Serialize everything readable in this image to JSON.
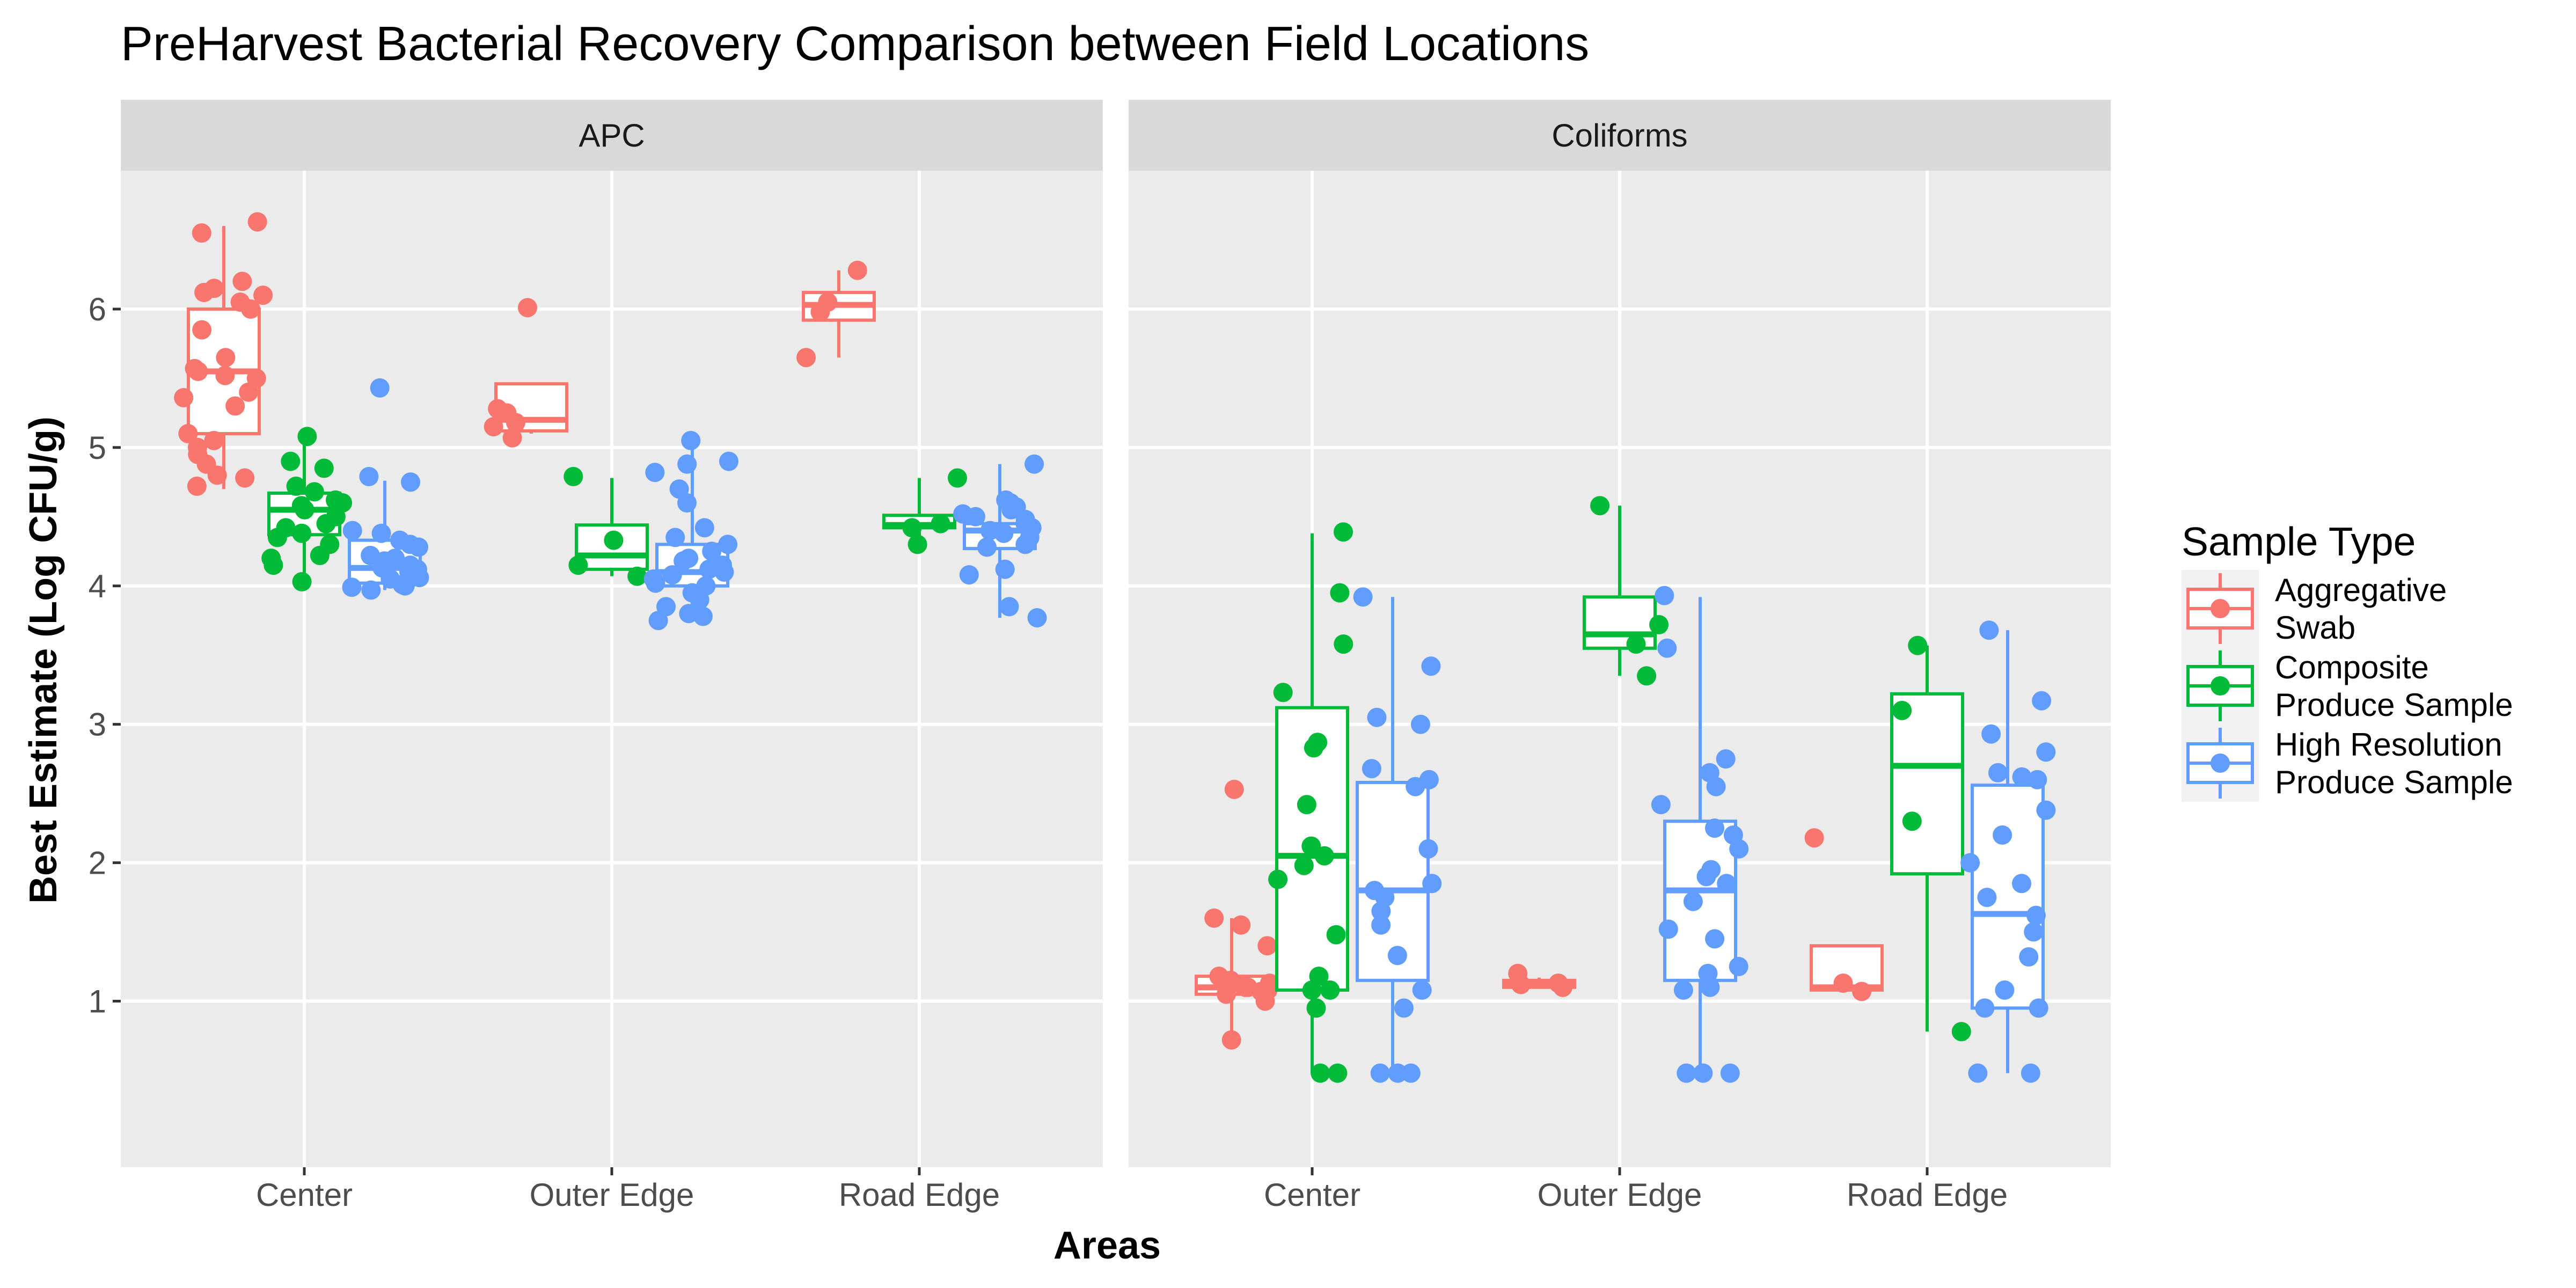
{
  "chart_data": {
    "type": "boxplot-with-jitter",
    "title": "PreHarvest Bacterial Recovery Comparison between Field Locations",
    "xlabel": "Areas",
    "ylabel": "Best Estimate (Log CFU/g)",
    "ylim": [
      -0.2,
      7.0
    ],
    "yticks": [
      1,
      2,
      3,
      4,
      5,
      6
    ],
    "categories": [
      "Center",
      "Outer Edge",
      "Road Edge"
    ],
    "legend": {
      "title": "Sample Type",
      "position": "right",
      "entries": [
        {
          "label_lines": [
            "Aggregative",
            "Swab"
          ],
          "color": "#F8766D"
        },
        {
          "label_lines": [
            "Composite",
            "Produce Sample"
          ],
          "color": "#00BA38"
        },
        {
          "label_lines": [
            "High Resolution",
            "Produce Sample"
          ],
          "color": "#619CFF"
        }
      ]
    },
    "series_colors": [
      "#F8766D",
      "#00BA38",
      "#619CFF"
    ],
    "panels": [
      {
        "name": "APC",
        "groups": [
          {
            "category": "Center",
            "series": 0,
            "box": {
              "q1": 5.1,
              "median": 5.55,
              "q3": 6.0,
              "lo": 4.7,
              "hi": 6.6
            },
            "points": [
              4.72,
              4.78,
              4.8,
              4.88,
              4.95,
              5.0,
              5.05,
              5.1,
              5.3,
              5.36,
              5.4,
              5.5,
              5.52,
              5.55,
              5.57,
              5.65,
              5.85,
              6.0,
              6.05,
              6.1,
              6.12,
              6.15,
              6.2,
              6.55,
              6.63
            ]
          },
          {
            "category": "Center",
            "series": 1,
            "box": {
              "q1": 4.37,
              "median": 4.55,
              "q3": 4.67,
              "lo": 4.03,
              "hi": 5.07
            },
            "points": [
              4.03,
              4.15,
              4.2,
              4.22,
              4.3,
              4.35,
              4.38,
              4.42,
              4.45,
              4.5,
              4.55,
              4.58,
              4.6,
              4.62,
              4.68,
              4.72,
              4.85,
              4.9,
              5.08
            ]
          },
          {
            "category": "Center",
            "series": 2,
            "box": {
              "q1": 4.02,
              "median": 4.13,
              "q3": 4.33,
              "lo": 3.97,
              "hi": 4.76
            },
            "points": [
              3.97,
              3.99,
              4.0,
              4.01,
              4.02,
              4.05,
              4.06,
              4.08,
              4.1,
              4.12,
              4.13,
              4.15,
              4.18,
              4.2,
              4.22,
              4.28,
              4.3,
              4.33,
              4.38,
              4.4,
              4.75,
              4.79,
              5.43
            ]
          },
          {
            "category": "Outer Edge",
            "series": 0,
            "box": {
              "q1": 5.12,
              "median": 5.2,
              "q3": 5.46,
              "lo": 5.1,
              "hi": 5.46
            },
            "points": [
              5.07,
              5.15,
              5.18,
              5.25,
              5.28,
              6.01
            ]
          },
          {
            "category": "Outer Edge",
            "series": 1,
            "box": {
              "q1": 4.12,
              "median": 4.22,
              "q3": 4.44,
              "lo": 4.07,
              "hi": 4.78
            },
            "points": [
              4.07,
              4.15,
              4.33,
              4.79
            ]
          },
          {
            "category": "Outer Edge",
            "series": 2,
            "box": {
              "q1": 4.0,
              "median": 4.1,
              "q3": 4.3,
              "lo": 3.75,
              "hi": 5.05
            },
            "points": [
              3.75,
              3.78,
              3.8,
              3.85,
              3.9,
              3.95,
              4.0,
              4.02,
              4.05,
              4.08,
              4.1,
              4.12,
              4.15,
              4.18,
              4.2,
              4.25,
              4.3,
              4.35,
              4.42,
              4.6,
              4.7,
              4.82,
              4.88,
              4.9,
              5.05
            ]
          },
          {
            "category": "Road Edge",
            "series": 0,
            "box": {
              "q1": 5.92,
              "median": 6.03,
              "q3": 6.12,
              "lo": 5.65,
              "hi": 6.28
            },
            "points": [
              5.65,
              5.98,
              6.05,
              6.28
            ]
          },
          {
            "category": "Road Edge",
            "series": 1,
            "box": {
              "q1": 4.42,
              "median": 4.44,
              "q3": 4.51,
              "lo": 4.3,
              "hi": 4.78
            },
            "points": [
              4.3,
              4.42,
              4.45,
              4.78
            ]
          },
          {
            "category": "Road Edge",
            "series": 2,
            "box": {
              "q1": 4.27,
              "median": 4.4,
              "q3": 4.45,
              "lo": 3.77,
              "hi": 4.88
            },
            "points": [
              3.77,
              3.85,
              4.08,
              4.12,
              4.28,
              4.3,
              4.35,
              4.38,
              4.4,
              4.42,
              4.45,
              4.48,
              4.5,
              4.52,
              4.55,
              4.57,
              4.6,
              4.62,
              4.88
            ]
          }
        ]
      },
      {
        "name": "Coliforms",
        "groups": [
          {
            "category": "Center",
            "series": 0,
            "box": {
              "q1": 1.05,
              "median": 1.1,
              "q3": 1.18,
              "lo": 0.72,
              "hi": 1.6
            },
            "points": [
              0.72,
              1.0,
              1.05,
              1.07,
              1.08,
              1.1,
              1.1,
              1.12,
              1.13,
              1.15,
              1.18,
              1.4,
              1.55,
              1.6,
              2.53
            ]
          },
          {
            "category": "Center",
            "series": 1,
            "box": {
              "q1": 1.08,
              "median": 2.05,
              "q3": 3.12,
              "lo": 0.48,
              "hi": 4.38
            },
            "points": [
              0.48,
              0.48,
              0.95,
              1.08,
              1.08,
              1.18,
              1.48,
              1.88,
              1.98,
              2.05,
              2.12,
              2.42,
              2.83,
              2.87,
              3.23,
              3.58,
              3.95,
              4.39
            ]
          },
          {
            "category": "Center",
            "series": 2,
            "box": {
              "q1": 1.15,
              "median": 1.8,
              "q3": 2.58,
              "lo": 0.48,
              "hi": 3.92
            },
            "points": [
              0.48,
              0.48,
              0.48,
              0.95,
              1.08,
              1.33,
              1.55,
              1.65,
              1.75,
              1.8,
              1.85,
              2.1,
              2.55,
              2.6,
              2.68,
              3.0,
              3.05,
              3.42,
              3.92
            ]
          },
          {
            "category": "Outer Edge",
            "series": 0,
            "box": {
              "q1": 1.1,
              "median": 1.13,
              "q3": 1.15,
              "lo": 1.1,
              "hi": 1.17
            },
            "points": [
              1.1,
              1.12,
              1.13,
              1.2
            ]
          },
          {
            "category": "Outer Edge",
            "series": 1,
            "box": {
              "q1": 3.55,
              "median": 3.65,
              "q3": 3.92,
              "lo": 3.35,
              "hi": 4.58
            },
            "points": [
              3.35,
              3.58,
              3.72,
              4.58
            ]
          },
          {
            "category": "Outer Edge",
            "series": 2,
            "box": {
              "q1": 1.15,
              "median": 1.8,
              "q3": 2.3,
              "lo": 0.48,
              "hi": 3.92
            },
            "points": [
              0.48,
              0.48,
              0.48,
              1.08,
              1.1,
              1.2,
              1.25,
              1.45,
              1.52,
              1.72,
              1.85,
              1.9,
              1.95,
              2.1,
              2.2,
              2.25,
              2.42,
              2.55,
              2.65,
              2.75,
              3.55,
              3.93
            ]
          },
          {
            "category": "Road Edge",
            "series": 0,
            "box": {
              "q1": 1.08,
              "median": 1.1,
              "q3": 1.4,
              "lo": 1.08,
              "hi": 1.4
            },
            "points": [
              1.07,
              1.13,
              2.18
            ]
          },
          {
            "category": "Road Edge",
            "series": 1,
            "box": {
              "q1": 1.92,
              "median": 2.7,
              "q3": 3.22,
              "lo": 0.78,
              "hi": 3.57
            },
            "points": [
              0.78,
              2.3,
              3.1,
              3.57
            ]
          },
          {
            "category": "Road Edge",
            "series": 2,
            "box": {
              "q1": 0.95,
              "median": 1.63,
              "q3": 2.56,
              "lo": 0.48,
              "hi": 3.68
            },
            "points": [
              0.48,
              0.48,
              0.95,
              0.95,
              1.08,
              1.32,
              1.5,
              1.62,
              1.75,
              1.85,
              2.0,
              2.2,
              2.38,
              2.6,
              2.62,
              2.65,
              2.8,
              2.93,
              3.17,
              3.68
            ]
          }
        ]
      }
    ]
  }
}
